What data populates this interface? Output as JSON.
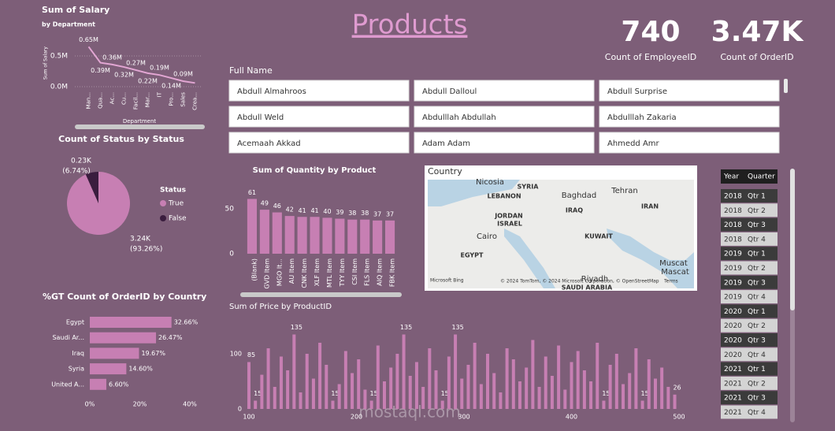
{
  "header": {
    "title": "Products"
  },
  "cards": [
    {
      "value": 740,
      "label": "Count of EmployeeID"
    },
    {
      "value": "3.47K",
      "label": "Count of OrderID"
    }
  ],
  "full_name_slicer": {
    "title": "Full Name",
    "items": [
      "Abdull Almahroos",
      "Abdull Dalloul",
      "Abdull Surprise",
      "Abdull Weld",
      "Abdulllah Abdullah",
      "Abdulllah Zakaria",
      "Acemaah Akkad",
      "Adam Adam",
      "Ahmedd Amr"
    ]
  },
  "map": {
    "title": "Country",
    "labels": [
      "Nicosia",
      "SYRIA",
      "LEBANON",
      "Baghdad",
      "Tehran",
      "IRAQ",
      "IRAN",
      "JORDAN",
      "ISRAEL",
      "Cairo",
      "KUWAIT",
      "EGYPT",
      "Muscat",
      "Mascat",
      "Riyadh",
      "SAUDI ARABIA"
    ],
    "attribution": "© 2024 TomTom, © 2024 Microsoft Corporation, © OpenStreetMap",
    "brand": "Microsoft Bing",
    "terms": "Terms"
  },
  "table": {
    "header": [
      "Year",
      "Quarter"
    ],
    "rows": [
      [
        2018,
        "Qtr 1"
      ],
      [
        2018,
        "Qtr 2"
      ],
      [
        2018,
        "Qtr 3"
      ],
      [
        2018,
        "Qtr 4"
      ],
      [
        2019,
        "Qtr 1"
      ],
      [
        2019,
        "Qtr 2"
      ],
      [
        2019,
        "Qtr 3"
      ],
      [
        2019,
        "Qtr 4"
      ],
      [
        2020,
        "Qtr 1"
      ],
      [
        2020,
        "Qtr 2"
      ],
      [
        2020,
        "Qtr 3"
      ],
      [
        2020,
        "Qtr 4"
      ],
      [
        2021,
        "Qtr 1"
      ],
      [
        2021,
        "Qtr 2"
      ],
      [
        2021,
        "Qtr 3"
      ],
      [
        2021,
        "Qtr 4"
      ]
    ]
  },
  "watermark": "mostaql.com",
  "chart_data": [
    {
      "type": "line",
      "title": "Sum of Salary",
      "subtitle": "by Department",
      "y_label": "Sum of Salary",
      "x_label": "Department",
      "color": "#e2a6d3",
      "categories": [
        "Man...",
        "Qua...",
        "Ac...",
        "Cu...",
        "Facil...",
        "Mar...",
        "IT",
        "Pro...",
        "Sales",
        "Crea..."
      ],
      "values": [
        650000,
        390000,
        360000,
        320000,
        270000,
        220000,
        190000,
        140000,
        90000,
        60000
      ],
      "value_labels": [
        "0.65M",
        "0.39M",
        "0.36M",
        "0.32M",
        "0.27M",
        "0.22M",
        "0.19M",
        "0.14M",
        "0.09M",
        null
      ],
      "ylim": [
        0,
        750000
      ],
      "yticks": [
        {
          "value": 0,
          "label": "0.0M"
        },
        {
          "value": 500000,
          "label": "0.5M"
        }
      ],
      "grid": true
    },
    {
      "type": "pie",
      "title": "Count of Status by Status",
      "legend_title": "Status",
      "categories": [
        "True",
        "False"
      ],
      "values": [
        3240,
        230
      ],
      "value_labels": [
        "3.24K",
        "0.23K"
      ],
      "percent_labels": [
        "(93.26%)",
        "(6.74%)"
      ],
      "colors": [
        "#c77fb3",
        "#3a1d3e"
      ]
    },
    {
      "type": "hbar",
      "title": "%GT Count of OrderID by Country",
      "color": "#c77fb3",
      "categories": [
        "Egypt",
        "Saudi Ar...",
        "Iraq",
        "Syria",
        "United A..."
      ],
      "values": [
        32.66,
        26.47,
        19.67,
        14.6,
        6.6
      ],
      "value_labels": [
        "32.66%",
        "26.47%",
        "19.67%",
        "14.60%",
        "6.60%"
      ],
      "xlim": [
        0,
        40
      ],
      "xticks": [
        {
          "value": 0,
          "label": "0%"
        },
        {
          "value": 20,
          "label": "20%"
        },
        {
          "value": 40,
          "label": "40%"
        }
      ]
    },
    {
      "type": "bar",
      "title": "Sum of Quantity by Product",
      "color": "#c77fb3",
      "categories": [
        "(Blank)",
        "GVD Item",
        "MGO It...",
        "AU Item",
        "CNK Item",
        "XLF Item",
        "MTL Item",
        "TYY Item",
        "CSI Item",
        "FLS Item",
        "AIQ Item",
        "FBK Item"
      ],
      "values": [
        61,
        49,
        46,
        42,
        41,
        41,
        40,
        39,
        38,
        38,
        37,
        37
      ],
      "ylim": [
        0,
        65
      ],
      "yticks": [
        0,
        50
      ]
    },
    {
      "type": "xbar",
      "title": "Sum of Price by ProductID",
      "color": "#c77fb3",
      "x": [
        100,
        106,
        112,
        118,
        124,
        130,
        136,
        142,
        148,
        154,
        160,
        166,
        172,
        178,
        184,
        190,
        196,
        202,
        208,
        214,
        220,
        226,
        232,
        238,
        244,
        250,
        256,
        262,
        268,
        274,
        280,
        286,
        292,
        298,
        304,
        310,
        316,
        322,
        328,
        334,
        340,
        346,
        352,
        358,
        364,
        370,
        376,
        382,
        388,
        394,
        400,
        406,
        412,
        418,
        424,
        430,
        436,
        442,
        448,
        454,
        460,
        466,
        472,
        478,
        484,
        490,
        496
      ],
      "values": [
        85,
        15,
        62,
        110,
        40,
        95,
        70,
        135,
        30,
        100,
        55,
        120,
        80,
        15,
        45,
        105,
        65,
        90,
        35,
        15,
        115,
        50,
        75,
        100,
        135,
        60,
        85,
        40,
        110,
        70,
        15,
        95,
        135,
        55,
        80,
        120,
        45,
        100,
        65,
        30,
        110,
        90,
        50,
        75,
        125,
        40,
        95,
        60,
        115,
        35,
        85,
        105,
        70,
        50,
        120,
        15,
        80,
        100,
        45,
        65,
        110,
        15,
        90,
        55,
        75,
        40,
        26
      ],
      "value_labels": [
        "85",
        "15",
        null,
        null,
        null,
        null,
        null,
        "135",
        null,
        null,
        null,
        null,
        null,
        "15",
        null,
        null,
        null,
        null,
        null,
        "15",
        null,
        null,
        null,
        null,
        "135",
        null,
        null,
        null,
        null,
        null,
        "15",
        null,
        "135",
        null,
        null,
        null,
        null,
        null,
        null,
        null,
        null,
        null,
        null,
        null,
        null,
        null,
        null,
        null,
        null,
        null,
        null,
        null,
        null,
        null,
        null,
        "15",
        null,
        null,
        null,
        null,
        null,
        "15",
        null,
        null,
        null,
        null,
        "26"
      ],
      "xlim": [
        100,
        500
      ],
      "xticks": [
        100,
        200,
        300,
        400,
        500
      ],
      "ylim": [
        0,
        140
      ],
      "yticks": [
        0,
        100
      ]
    }
  ]
}
